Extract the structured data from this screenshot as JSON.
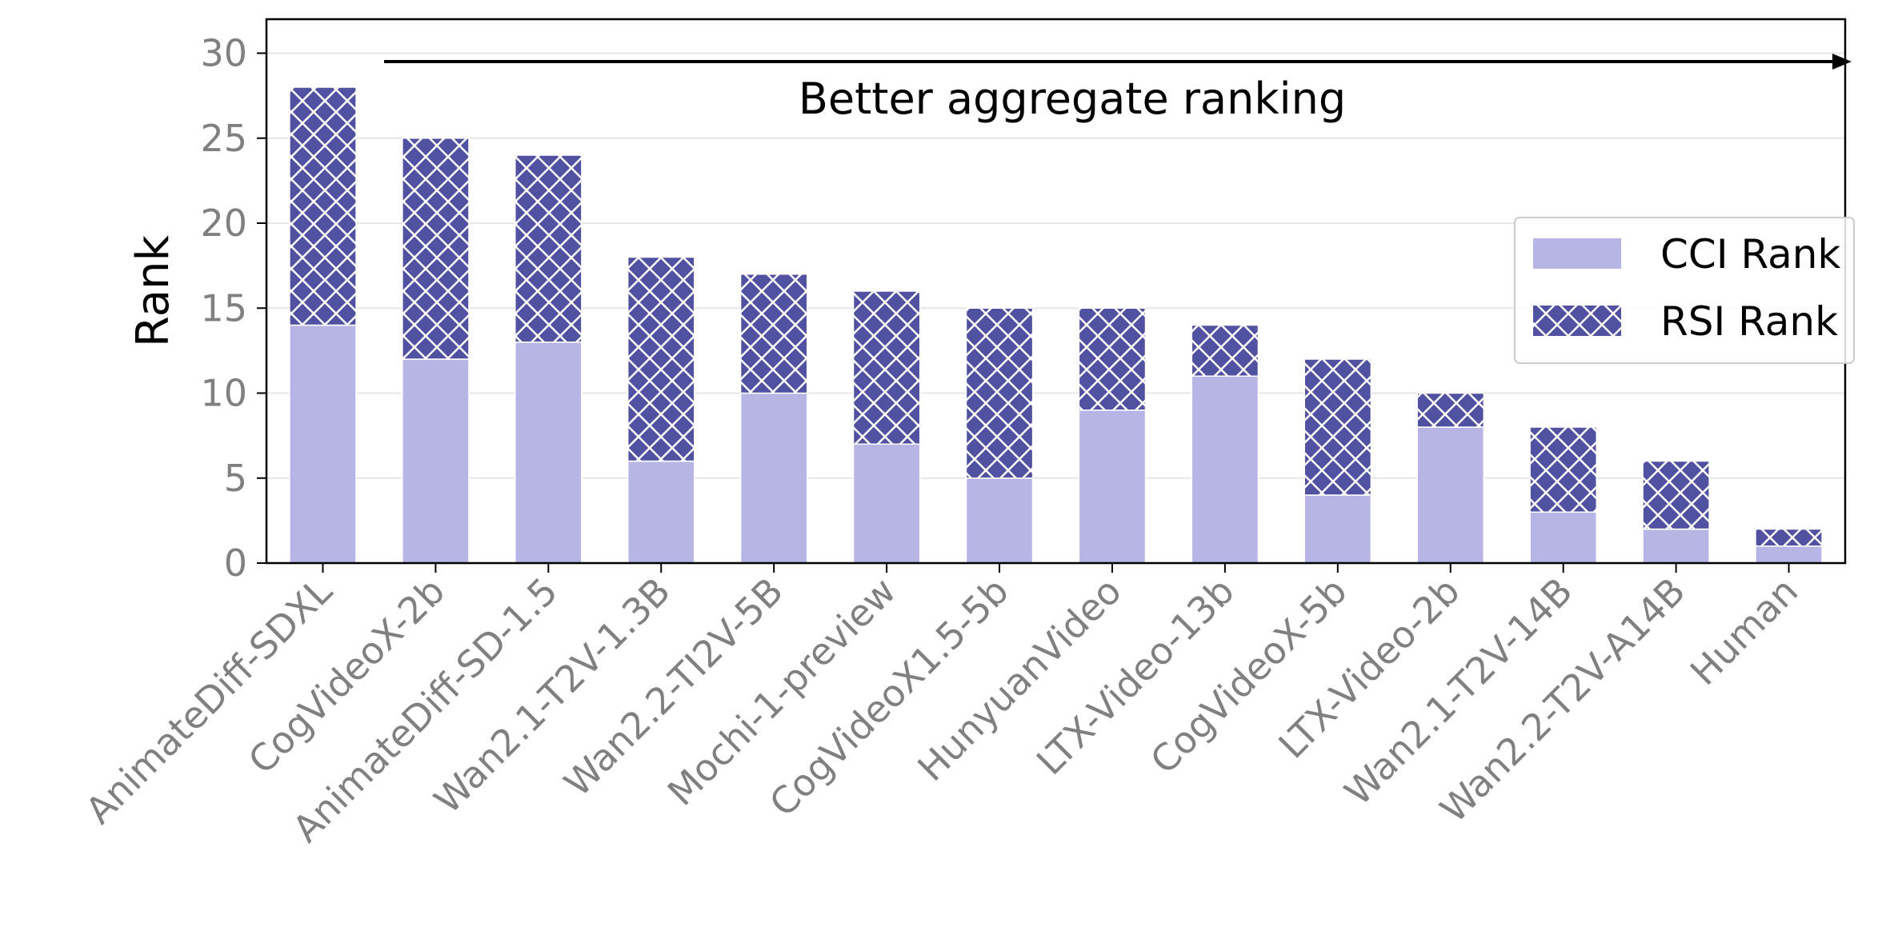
{
  "chart_data": {
    "type": "bar",
    "stacked": true,
    "categories": [
      "AnimateDiff-SDXL",
      "CogVideoX-2b",
      "AnimateDiff-SD-1.5",
      "Wan2.1-T2V-1.3B",
      "Wan2.2-TI2V-5B",
      "Mochi-1-preview",
      "CogVideoX1.5-5b",
      "HunyuanVideo",
      "LTX-Video-13b",
      "CogVideoX-5b",
      "LTX-Video-2b",
      "Wan2.1-T2V-14B",
      "Wan2.2-T2V-A14B",
      "Human"
    ],
    "series": [
      {
        "name": "CCI Rank",
        "values": [
          14,
          12,
          13,
          6,
          10,
          7,
          5,
          9,
          11,
          4,
          8,
          3,
          2,
          1
        ],
        "color": "#b6b5e6",
        "pattern": "solid"
      },
      {
        "name": "RSI Rank",
        "values": [
          14,
          13,
          11,
          12,
          7,
          9,
          10,
          6,
          3,
          8,
          2,
          5,
          4,
          1
        ],
        "color": "#5051a0",
        "pattern": "crosshatch"
      }
    ],
    "ylabel": "Rank",
    "ylim": [
      0,
      32
    ],
    "yticks": [
      0,
      5,
      10,
      15,
      20,
      25,
      30
    ],
    "grid": "horizontal",
    "legend_position": "right",
    "annotation": {
      "text": "Better aggregate ranking",
      "arrow": "left-to-right"
    }
  }
}
